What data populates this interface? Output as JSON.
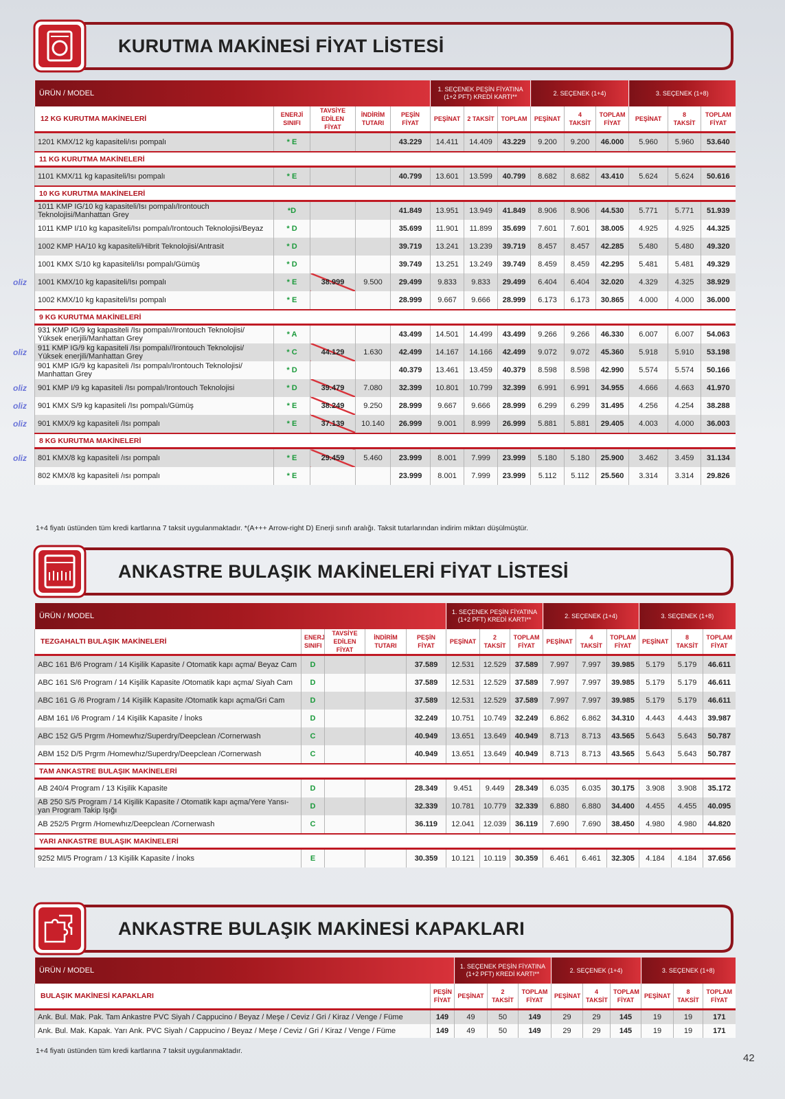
{
  "page": {
    "number": "42"
  },
  "sections": [
    {
      "title": "KURUTMA MAKİNESİ FİYAT LİSTESİ",
      "header": {
        "product": "ÜRÜN / MODEL",
        "option1": "1. SEÇENEK PEŞİN FİYATINA (1+2 PFT) KREDİ KARTI**",
        "option2": "2. SEÇENEK (1+4)",
        "option3": "3. SEÇENEK (1+8)"
      },
      "columns": [
        "ENERJİ SINIFI",
        "TAVSİYE EDİLEN FİYAT",
        "İNDİRİM TUTARI",
        "PEŞİN FİYAT",
        "PEŞİNAT",
        "2 TAKSİT",
        "TOPLAM",
        "PEŞİNAT",
        "4 TAKSİT",
        "TOPLAM FİYAT",
        "PEŞİNAT",
        "8 TAKSİT",
        "TOPLAM FİYAT"
      ],
      "groups": [
        {
          "name": "12 KG KURUTMA MAKİNELERİ",
          "rows": [
            {
              "cells": [
                "1201 KMX/12 kg kapasiteli/ısı pompalı",
                "* E",
                null,
                null,
                "43.229",
                "14.411",
                "14.409",
                "43.229",
                "9.200",
                "9.200",
                "46.000",
                "5.960",
                "5.960",
                "53.640"
              ]
            }
          ]
        },
        {
          "name": "11 KG KURUTMA MAKİNELERİ",
          "rows": [
            {
              "cells": [
                "1101 KMX/11 kg kapasiteli/Isı pompalı",
                "* E",
                null,
                null,
                "40.799",
                "13.601",
                "13.599",
                "40.799",
                "8.682",
                "8.682",
                "43.410",
                "5.624",
                "5.624",
                "50.616"
              ]
            }
          ]
        },
        {
          "name": "10 KG KURUTMA MAKİNELERİ",
          "rows": [
            {
              "cells": [
                "1011 KMP IG/10 kg kapasiteli/Isı pompalı/Irontouch Teknolojisi/Manhattan Grey",
                "*D",
                null,
                null,
                "41.849",
                "13.951",
                "13.949",
                "41.849",
                "8.906",
                "8.906",
                "44.530",
                "5.771",
                "5.771",
                "51.939"
              ]
            },
            {
              "cells": [
                "1011 KMP I/10 kg kapasiteli/Isı pompalı/Irontouch Teknolojisi/Beyaz",
                "* D",
                null,
                null,
                "35.699",
                "11.901",
                "11.899",
                "35.699",
                "7.601",
                "7.601",
                "38.005",
                "4.925",
                "4.925",
                "44.325"
              ]
            },
            {
              "cells": [
                "1002 KMP HA/10 kg kapasiteli/Hibrit Teknolojisi/Antrasit",
                "* D",
                null,
                null,
                "39.719",
                "13.241",
                "13.239",
                "39.719",
                "8.457",
                "8.457",
                "42.285",
                "5.480",
                "5.480",
                "49.320"
              ]
            },
            {
              "cells": [
                "1001 KMX S/10 kg kapasiteli/Isı pompalı/Gümüş",
                "* D",
                null,
                null,
                "39.749",
                "13.251",
                "13.249",
                "39.749",
                "8.459",
                "8.459",
                "42.295",
                "5.481",
                "5.481",
                "49.329"
              ]
            },
            {
              "badge": "oliz",
              "cells": [
                "1001 KMX/10 kg kapasiteli/Isı pompalı",
                "* E",
                "38.999",
                "9.500",
                "29.499",
                "9.833",
                "9.833",
                "29.499",
                "6.404",
                "6.404",
                "32.020",
                "4.329",
                "4.325",
                "38.929"
              ]
            },
            {
              "cells": [
                "1002 KMX/10 kg kapasiteli/Isı pompalı",
                "* E",
                null,
                null,
                "28.999",
                "9.667",
                "9.666",
                "28.999",
                "6.173",
                "6.173",
                "30.865",
                "4.000",
                "4.000",
                "36.000"
              ]
            }
          ]
        },
        {
          "name": "9 KG KURUTMA MAKİNELERİ",
          "rows": [
            {
              "cells": [
                "931 KMP IG/9 kg kapasiteli /Isı pompalı//Irontouch Teknolojisi/ Yüksek enerjili/Manhattan Grey",
                "* A",
                null,
                null,
                "43.499",
                "14.501",
                "14.499",
                "43.499",
                "9.266",
                "9.266",
                "46.330",
                "6.007",
                "6.007",
                "54.063"
              ]
            },
            {
              "badge": "oliz",
              "cells": [
                "911 KMP IG/9 kg kapasiteli /Isı pompalı//Irontouch Teknolojisi/ Yüksek enerjili/Manhattan Grey",
                "* C",
                "44.129",
                "1.630",
                "42.499",
                "14.167",
                "14.166",
                "42.499",
                "9.072",
                "9.072",
                "45.360",
                "5.918",
                "5.910",
                "53.198"
              ]
            },
            {
              "cells": [
                "901 KMP IG/9 kg kapasiteli /Isı pompalı/Irontouch Teknolojisi/ Manhattan Grey",
                "* D",
                null,
                null,
                "40.379",
                "13.461",
                "13.459",
                "40.379",
                "8.598",
                "8.598",
                "42.990",
                "5.574",
                "5.574",
                "50.166"
              ]
            },
            {
              "badge": "oliz",
              "cells": [
                "901 KMP I/9 kg kapasiteli /Isı pompalı/Irontouch Teknolojisi",
                "* D",
                "39.479",
                "7.080",
                "32.399",
                "10.801",
                "10.799",
                "32.399",
                "6.991",
                "6.991",
                "34.955",
                "4.666",
                "4.663",
                "41.970"
              ]
            },
            {
              "badge": "oliz",
              "cells": [
                "901 KMX S/9 kg kapasiteli /Isı pompalı/Gümüş",
                "* E",
                "38.249",
                "9.250",
                "28.999",
                "9.667",
                "9.666",
                "28.999",
                "6.299",
                "6.299",
                "31.495",
                "4.256",
                "4.254",
                "38.288"
              ]
            },
            {
              "badge": "oliz",
              "cells": [
                "901 KMX/9 kg kapasiteli /Isı pompalı",
                "* E",
                "37.139",
                "10.140",
                "26.999",
                "9.001",
                "8.999",
                "26.999",
                "5.881",
                "5.881",
                "29.405",
                "4.003",
                "4.000",
                "36.003"
              ]
            }
          ]
        },
        {
          "name": "8 KG KURUTMA MAKİNELERİ",
          "rows": [
            {
              "badge": "oliz",
              "cells": [
                "801 KMX/8 kg kapasiteli /ısı pompalı",
                "* E",
                "29.459",
                "5.460",
                "23.999",
                "8.001",
                "7.999",
                "23.999",
                "5.180",
                "5.180",
                "25.900",
                "3.462",
                "3.459",
                "31.134"
              ]
            },
            {
              "cells": [
                "802 KMX/8 kg kapasiteli /ısı pompalı",
                "* E",
                null,
                null,
                "23.999",
                "8.001",
                "7.999",
                "23.999",
                "5.112",
                "5.112",
                "25.560",
                "3.314",
                "3.314",
                "29.826"
              ]
            }
          ]
        }
      ],
      "note": "1+4 fiyatı üstünden tüm kredi kartlarına 7 taksit uygulanmaktadır. *(A+++ Arrow-right D) Enerji sınıfı aralığı. Taksit tutarlarından indirim miktarı düşülmüştür."
    },
    {
      "title": "ANKASTRE BULAŞIK MAKİNELERİ FİYAT LİSTESİ",
      "header": {
        "product": "ÜRÜN / MODEL",
        "option1": "1. SEÇENEK PEŞİN FİYATINA (1+2 PFT) KREDİ KARTI**",
        "option2": "2. SEÇENEK (1+4)",
        "option3": "3. SEÇENEK (1+8)"
      },
      "columns": [
        "ENERJİ SINIFI",
        "TAVSİYE EDİLEN FİYAT",
        "İNDİRİM TUTARI",
        "PEŞİN FİYAT",
        "PEŞİNAT",
        "2 TAKSİT",
        "TOPLAM FİYAT",
        "PEŞİNAT",
        "4 TAKSİT",
        "TOPLAM FİYAT",
        "PEŞİNAT",
        "8 TAKSİT",
        "TOPLAM FİYAT"
      ],
      "groups": [
        {
          "name": "TEZGAHALTI BULAŞIK MAKİNELERİ",
          "rows": [
            {
              "cells": [
                "ABC 161 B/6 Program / 14 Kişilik Kapasite / Otomatik kapı açma/ Beyaz Cam",
                "D",
                null,
                null,
                "37.589",
                "12.531",
                "12.529",
                "37.589",
                "7.997",
                "7.997",
                "39.985",
                "5.179",
                "5.179",
                "46.611"
              ]
            },
            {
              "cells": [
                "ABC 161 S/6 Program / 14 Kişilik Kapasite /Otomatik kapı açma/ Siyah Cam",
                "D",
                null,
                null,
                "37.589",
                "12.531",
                "12.529",
                "37.589",
                "7.997",
                "7.997",
                "39.985",
                "5.179",
                "5.179",
                "46.611"
              ]
            },
            {
              "cells": [
                "ABC 161 G /6 Program / 14 Kişilik Kapasite /Otomatik kapı açma/Gri Cam",
                "D",
                null,
                null,
                "37.589",
                "12.531",
                "12.529",
                "37.589",
                "7.997",
                "7.997",
                "39.985",
                "5.179",
                "5.179",
                "46.611"
              ]
            },
            {
              "cells": [
                "ABM 161 I/6 Program / 14 Kişilik Kapasite / İnoks",
                "D",
                null,
                null,
                "32.249",
                "10.751",
                "10.749",
                "32.249",
                "6.862",
                "6.862",
                "34.310",
                "4.443",
                "4.443",
                "39.987"
              ]
            },
            {
              "cells": [
                "ABC 152 G/5 Prgrm /Homewhız/Superdry/Deepclean /Cornerwash",
                "C",
                null,
                null,
                "40.949",
                "13.651",
                "13.649",
                "40.949",
                "8.713",
                "8.713",
                "43.565",
                "5.643",
                "5.643",
                "50.787"
              ]
            },
            {
              "cells": [
                "ABM 152 D/5 Prgrm /Homewhız/Superdry/Deepclean /Cornerwash",
                "C",
                null,
                null,
                "40.949",
                "13.651",
                "13.649",
                "40.949",
                "8.713",
                "8.713",
                "43.565",
                "5.643",
                "5.643",
                "50.787"
              ]
            }
          ]
        },
        {
          "name": "TAM ANKASTRE BULAŞIK MAKİNELERİ",
          "rows": [
            {
              "cells": [
                "AB 240/4 Program / 13 Kişilik Kapasite",
                "D",
                null,
                null,
                "28.349",
                "9.451",
                "9.449",
                "28.349",
                "6.035",
                "6.035",
                "30.175",
                "3.908",
                "3.908",
                "35.172"
              ]
            },
            {
              "cells": [
                "AB 250 S/5 Program / 14 Kişilik Kapasite / Otomatik kapı açma/Yere Yansı-yan Program Takip Işığı",
                "D",
                null,
                null,
                "32.339",
                "10.781",
                "10.779",
                "32.339",
                "6.880",
                "6.880",
                "34.400",
                "4.455",
                "4.455",
                "40.095"
              ]
            },
            {
              "cells": [
                "AB 252/5 Prgrm /Homewhız/Deepclean /Cornerwash",
                "C",
                null,
                null,
                "36.119",
                "12.041",
                "12.039",
                "36.119",
                "7.690",
                "7.690",
                "38.450",
                "4.980",
                "4.980",
                "44.820"
              ]
            }
          ]
        },
        {
          "name": "YARI ANKASTRE BULAŞIK MAKİNELERİ",
          "rows": [
            {
              "cells": [
                "9252 MI/5 Program / 13 Kişilik Kapasite / İnoks",
                "E",
                null,
                null,
                "30.359",
                "10.121",
                "10.119",
                "30.359",
                "6.461",
                "6.461",
                "32.305",
                "4.184",
                "4.184",
                "37.656"
              ]
            }
          ]
        }
      ]
    },
    {
      "title": "ANKASTRE BULAŞIK MAKİNESİ KAPAKLARI",
      "header": {
        "product": "ÜRÜN / MODEL",
        "option1": "1. SEÇENEK PEŞİN FİYATINA (1+2 PFT) KREDİ KARTI**",
        "option2": "2. SEÇENEK (1+4)",
        "option3": "3. SEÇENEK (1+8)"
      },
      "columns": [
        "PEŞİN FİYAT",
        "PEŞİNAT",
        "2 TAKSİT",
        "TOPLAM FİYAT",
        "PEŞİNAT",
        "4 TAKSİT",
        "TOPLAM FİYAT",
        "PEŞİNAT",
        "8 TAKSİT",
        "TOPLAM FİYAT"
      ],
      "groups": [
        {
          "name": "BULAŞIK MAKİNESİ KAPAKLARI",
          "rows": [
            {
              "cells": [
                "Ank. Bul. Mak. Pak. Tam Ankastre PVC Siyah / Cappucino / Beyaz / Meşe / Ceviz / Gri / Kiraz / Venge / Füme",
                "149",
                "49",
                "50",
                "149",
                "29",
                "29",
                "145",
                "19",
                "19",
                "171"
              ]
            },
            {
              "cells": [
                "Ank. Bul. Mak. Kapak. Yarı Ank. PVC Siyah / Cappucino / Beyaz / Meşe / Ceviz / Gri / Kiraz / Venge / Füme",
                "149",
                "49",
                "50",
                "149",
                "29",
                "29",
                "145",
                "19",
                "19",
                "171"
              ]
            }
          ]
        }
      ],
      "note": "1+4 fiyatı üstünden tüm kredi kartlarına 7 taksit uygulanmaktadır."
    }
  ]
}
